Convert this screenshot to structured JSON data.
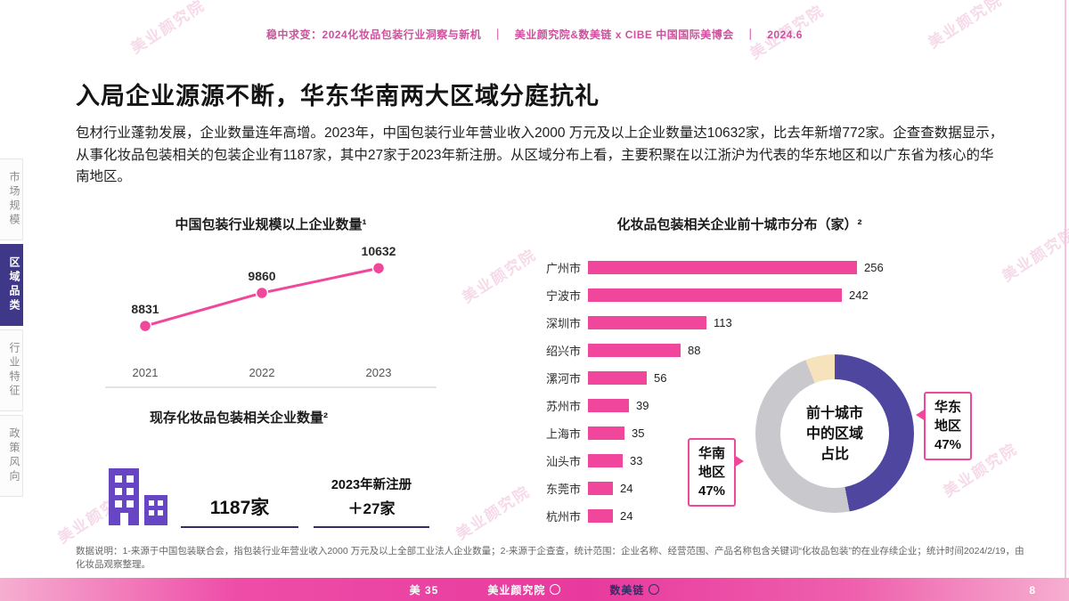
{
  "header": {
    "text": "稳中求变：2024化妆品包装行业洞察与新机　｜　美业颜究院&数美链 x CIBE 中国国际美博会　｜　2024.6"
  },
  "title": "入局企业源源不断，华东华南两大区域分庭抗礼",
  "paragraph": "包材行业蓬勃发展，企业数量连年高增。2023年，中国包装行业年营业收入2000 万元及以上企业数量达10632家，比去年新增772家。企查查数据显示，从事化妆品包装相关的包装企业有1187家，其中27家于2023年新注册。从区域分布上看，主要积聚在以江浙沪为代表的华东地区和以广东省为核心的华南地区。",
  "sidebar": {
    "items": [
      {
        "label": "市场规模",
        "active": false
      },
      {
        "label": "区域品类",
        "active": true
      },
      {
        "label": "行业特征",
        "active": false
      },
      {
        "label": "政策风向",
        "active": false
      }
    ]
  },
  "stats": {
    "title": "现存化妆品包装相关企业数量²",
    "existing": "1187家",
    "new_label": "2023年新注册",
    "new_value": "＋27家"
  },
  "colors": {
    "accent_pink": "#f0479c",
    "navy": "#3f3787",
    "underline_navy": "#332d66",
    "building_purple": "#6746c3"
  },
  "chart_data": [
    {
      "type": "line",
      "title": "中国包装行业规模以上企业数量¹",
      "x": [
        "2021",
        "2022",
        "2023"
      ],
      "values": [
        8831,
        9860,
        10632
      ],
      "color": "#f0479c",
      "ylim": [
        8500,
        11000
      ],
      "grid": false,
      "legend": "none"
    },
    {
      "type": "bar",
      "orientation": "horizontal",
      "title": "化妆品包装相关企业前十城市分布（家）²",
      "categories": [
        "广州市",
        "宁波市",
        "深圳市",
        "绍兴市",
        "漯河市",
        "苏州市",
        "上海市",
        "汕头市",
        "东莞市",
        "杭州市"
      ],
      "values": [
        256,
        242,
        113,
        88,
        56,
        39,
        35,
        33,
        24,
        24
      ],
      "color": "#f0479c",
      "xlim": [
        0,
        280
      ],
      "value_labels": true
    },
    {
      "type": "pie",
      "subtype": "donut",
      "title": "前十城市中的区域占比",
      "slices": [
        {
          "label": "华东地区",
          "value": 47,
          "color": "#4f46a0"
        },
        {
          "label": "华南地区",
          "value": 47,
          "color": "#c9c9cd"
        },
        {
          "label": "",
          "value": 6,
          "color": "#f6e3bc"
        }
      ],
      "legend": "callouts"
    }
  ],
  "footnote": "数据说明：1-来源于中国包装联合会，指包装行业年营业收入2000 万元及以上全部工业法人企业数量；2-来源于企查查，统计范围：企业名称、经营范围、产品名称包含关键词“化妆品包装”的在业存续企业；统计时间2024/2/19，由化妆品观察整理。",
  "footer": {
    "logos": [
      "美 35",
      "美业颜究院",
      "数美链"
    ],
    "page_number": "8"
  },
  "watermark": {
    "text": "美业颜究院"
  }
}
